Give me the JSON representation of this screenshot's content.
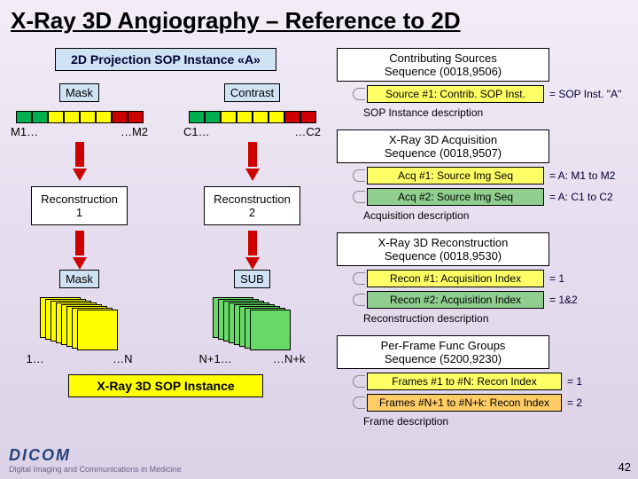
{
  "title": "X-Ray 3D Angiography – Reference to 2D",
  "page_number": "42",
  "logo": {
    "brand": "DICOM",
    "tagline": "Digital Imaging and Communications in Medicine"
  },
  "left": {
    "header": "2D Projection SOP Instance «A»",
    "mask_label": "Mask",
    "contrast_label": "Contrast",
    "mask_bar_colors": [
      "#00b050",
      "#00b050",
      "#ff0",
      "#ff0",
      "#ff0",
      "#ff0",
      "#c00",
      "#c00"
    ],
    "contrast_bar_colors": [
      "#00b050",
      "#00b050",
      "#ff0",
      "#ff0",
      "#ff0",
      "#ff0",
      "#c00",
      "#c00"
    ],
    "mask_min": "M1…",
    "mask_max": "…M2",
    "contrast_min": "C1…",
    "contrast_max": "…C2",
    "recon1": "Reconstruction\n1",
    "recon2": "Reconstruction\n2",
    "mask2_label": "Mask",
    "sub_label": "SUB",
    "slab_yellow": "#ffff00",
    "slab_green": "#66d966",
    "left_slab_min": "1…",
    "left_slab_max": "…N",
    "right_slab_min": "N+1…",
    "right_slab_max": "…N+k",
    "footer": "X-Ray 3D SOP Instance"
  },
  "right": {
    "seq1": {
      "head": "Contributing Sources\nSequence (0018,9506)",
      "item1": "Source #1: Contrib. SOP Inst.",
      "note1": "= SOP Inst. \"A\"",
      "desc": "SOP Instance description"
    },
    "seq2": {
      "head": "X-Ray 3D Acquisition\nSequence (0018,9507)",
      "item1": "Acq #1: Source Img Seq",
      "note1": "= A: M1 to M2",
      "item2": "Acq #2: Source Img Seq",
      "note2": "= A: C1 to C2",
      "desc": "Acquisition description"
    },
    "seq3": {
      "head": "X-Ray 3D Reconstruction\nSequence (0018,9530)",
      "item1": "Recon #1: Acquisition Index",
      "note1": "= 1",
      "item2": "Recon #2: Acquisition Index",
      "note2": "= 1&2",
      "desc": "Reconstruction description"
    },
    "seq4": {
      "head": "Per-Frame Func Groups\nSequence (5200,9230)",
      "item1": "Frames #1 to #N: Recon Index",
      "note1": "= 1",
      "item2": "Frames #N+1 to #N+k: Recon Index",
      "note2": "= 2",
      "desc": "Frame description"
    }
  }
}
